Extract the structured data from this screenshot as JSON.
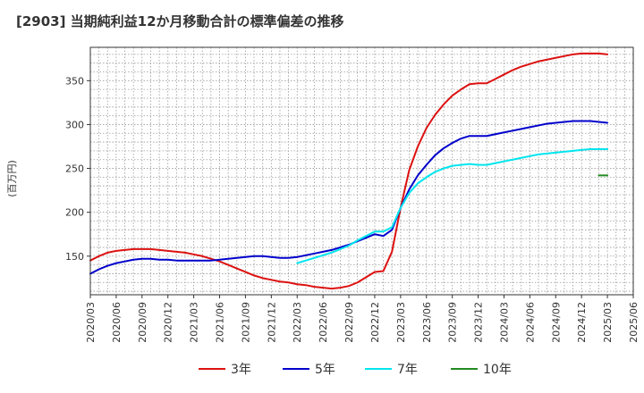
{
  "title": "[2903]  当期純利益12か月移動合計の標準偏差の推移",
  "chart_data": {
    "type": "line",
    "title": "[2903]  当期純利益12か月移動合計の標準偏差の推移",
    "ylabel": "(百万円)",
    "xlabel": "",
    "ylim": [
      106,
      388
    ],
    "y_ticks": [
      150,
      200,
      250,
      300,
      350
    ],
    "x_tick_labels": [
      "2020/03",
      "2020/06",
      "2020/09",
      "2020/12",
      "2021/03",
      "2021/06",
      "2021/09",
      "2021/12",
      "2022/03",
      "2022/06",
      "2022/09",
      "2022/12",
      "2023/03",
      "2023/06",
      "2023/09",
      "2023/12",
      "2024/03",
      "2024/06",
      "2024/09",
      "2024/12",
      "2025/03",
      "2025/06"
    ],
    "x_months": [
      "2020/03",
      "2020/04",
      "2020/05",
      "2020/06",
      "2020/07",
      "2020/08",
      "2020/09",
      "2020/10",
      "2020/11",
      "2020/12",
      "2021/01",
      "2021/02",
      "2021/03",
      "2021/04",
      "2021/05",
      "2021/06",
      "2021/07",
      "2021/08",
      "2021/09",
      "2021/10",
      "2021/11",
      "2021/12",
      "2022/01",
      "2022/02",
      "2022/03",
      "2022/04",
      "2022/05",
      "2022/06",
      "2022/07",
      "2022/08",
      "2022/09",
      "2022/10",
      "2022/11",
      "2022/12",
      "2023/01",
      "2023/02",
      "2023/03",
      "2023/04",
      "2023/05",
      "2023/06",
      "2023/07",
      "2023/08",
      "2023/09",
      "2023/10",
      "2023/11",
      "2023/12",
      "2024/01",
      "2024/02",
      "2024/03",
      "2024/04",
      "2024/05",
      "2024/06",
      "2024/07",
      "2024/08",
      "2024/09",
      "2024/10",
      "2024/11",
      "2024/12",
      "2025/01",
      "2025/02",
      "2025/03"
    ],
    "grid": true,
    "legend_position": "bottom",
    "series": [
      {
        "name": "3年",
        "color": "#dd1111",
        "start_index": 0,
        "values": [
          145,
          150,
          154,
          156,
          157,
          158,
          158,
          158,
          157,
          156,
          155,
          154,
          152,
          150,
          147,
          144,
          140,
          136,
          132,
          128,
          125,
          123,
          121,
          120,
          118,
          117,
          115,
          114,
          113,
          114,
          116,
          120,
          126,
          132,
          133,
          155,
          205,
          248,
          275,
          296,
          311,
          323,
          333,
          340,
          346,
          347,
          347,
          352,
          357,
          362,
          366,
          369,
          372,
          374,
          376,
          378,
          380,
          381,
          381,
          381,
          380
        ]
      },
      {
        "name": "5年",
        "color": "#0000cc",
        "start_index": 0,
        "values": [
          130,
          135,
          139,
          142,
          144,
          146,
          147,
          147,
          146,
          146,
          145,
          145,
          145,
          145,
          145,
          146,
          147,
          148,
          149,
          150,
          150,
          149,
          148,
          148,
          149,
          151,
          153,
          155,
          157,
          160,
          163,
          167,
          171,
          175,
          173,
          180,
          205,
          226,
          242,
          254,
          265,
          273,
          279,
          284,
          287,
          287,
          287,
          289,
          291,
          293,
          295,
          297,
          299,
          301,
          302,
          303,
          304,
          304,
          304,
          303,
          302
        ]
      },
      {
        "name": "7年",
        "color": "#00e5ee",
        "start_index": 24,
        "values": [
          142,
          145,
          148,
          151,
          154,
          158,
          162,
          168,
          173,
          178,
          178,
          183,
          205,
          222,
          233,
          240,
          246,
          250,
          253,
          254,
          255,
          254,
          254,
          256,
          258,
          260,
          262,
          264,
          266,
          267,
          268,
          269,
          270,
          271,
          272,
          272,
          272
        ]
      },
      {
        "name": "10年",
        "color": "#228b22",
        "start_index": 59,
        "values": [
          242,
          242
        ]
      }
    ]
  },
  "legend": {
    "items": [
      {
        "label": "3年"
      },
      {
        "label": "5年"
      },
      {
        "label": "7年"
      },
      {
        "label": "10年"
      }
    ]
  }
}
